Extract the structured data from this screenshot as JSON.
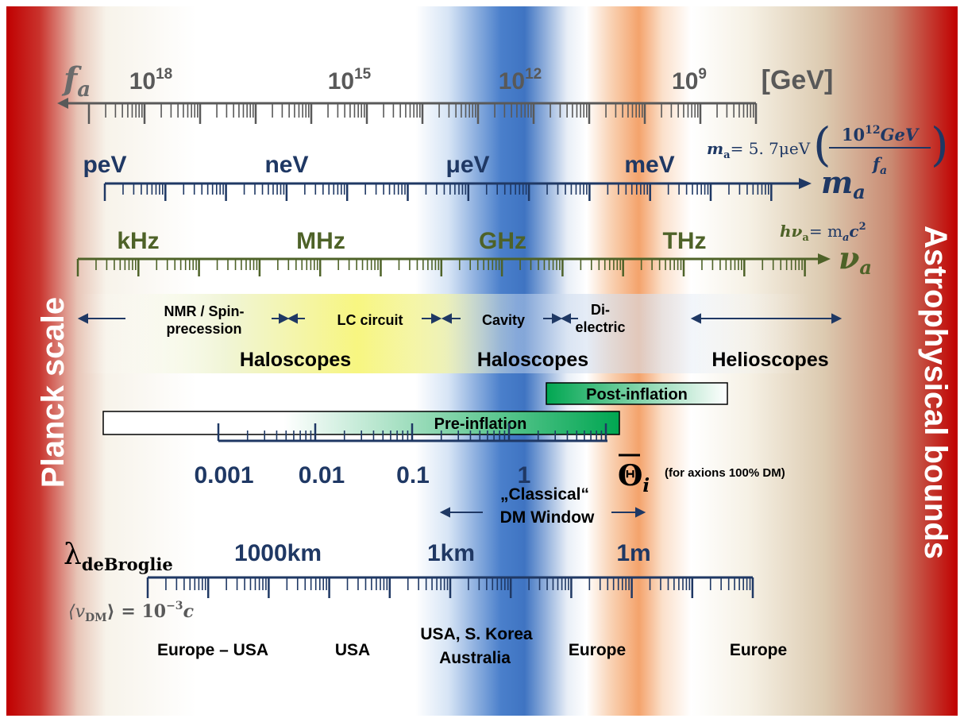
{
  "colors": {
    "gray": "#595959",
    "navy": "#1f3864",
    "olive": "#4e6228",
    "red": "#c00000",
    "blue": "#4a7fcb",
    "orange": "#f4a36c",
    "green": "#00a651",
    "cream": "#f0ead8",
    "tan": "#d9c6a5",
    "yellow": "#f7f57a"
  },
  "side_labels": {
    "left": "Planck scale",
    "right": "Astrophysical bounds"
  },
  "fa_axis": {
    "symbol": "f",
    "symbol_sub": "a",
    "unit": "[GeV]",
    "ticks": [
      {
        "base": "10",
        "exp": "18"
      },
      {
        "base": "10",
        "exp": "15"
      },
      {
        "base": "10",
        "exp": "12"
      },
      {
        "base": "10",
        "exp": "9"
      }
    ]
  },
  "ma_axis": {
    "symbol": "m",
    "symbol_sub": "a",
    "labels": [
      "peV",
      "neV",
      "μeV",
      "meV"
    ],
    "formula": {
      "lhs": "m",
      "lhs_sub": "a",
      "eq": "= 5. 7μeV",
      "numerator": "10",
      "numerator_exp": "12",
      "numerator_unit": "GeV",
      "denominator": "f",
      "denominator_sub": "a"
    }
  },
  "nu_axis": {
    "symbol": "ν",
    "symbol_sub": "a",
    "labels": [
      "kHz",
      "MHz",
      "GHz",
      "THz"
    ],
    "formula": {
      "lhs": "hν",
      "lhs_sub": "a",
      "eq": "= m",
      "m_sub": "a",
      "rhs": "c",
      "rhs_exp": "2"
    }
  },
  "techniques": [
    {
      "line1": "NMR / Spin-",
      "line2": "precession"
    },
    {
      "line1": "LC circuit",
      "line2": ""
    },
    {
      "line1": "Cavity",
      "line2": ""
    },
    {
      "line1": "Di-",
      "line2": "electric"
    }
  ],
  "groups": [
    "Haloscopes",
    "Haloscopes",
    "Helioscopes"
  ],
  "bars": {
    "post_inflation": "Post-inflation",
    "pre_inflation": "Pre-inflation"
  },
  "theta_axis": {
    "labels": [
      "0.001",
      "0.01",
      "0.1",
      "1"
    ],
    "symbol": "Θ",
    "symbol_sub": "i",
    "note": "(for axions 100% DM)"
  },
  "window": {
    "line1": "„Classical“",
    "line2": "DM Window"
  },
  "lambda_axis": {
    "symbol": "λ",
    "symbol_sub": "deBroglie",
    "labels": [
      "1000km",
      "1km",
      "1m"
    ],
    "velocity": {
      "lhs": "⟨v",
      "lhs_sub": "DM",
      "eq": "⟩ = 10",
      "exp": "−3",
      "tail": "c"
    }
  },
  "regions": [
    {
      "line1": "Europe – USA",
      "line2": ""
    },
    {
      "line1": "USA",
      "line2": ""
    },
    {
      "line1": "USA, S. Korea",
      "line2": "Australia"
    },
    {
      "line1": "Europe",
      "line2": ""
    },
    {
      "line1": "Europe",
      "line2": ""
    }
  ]
}
